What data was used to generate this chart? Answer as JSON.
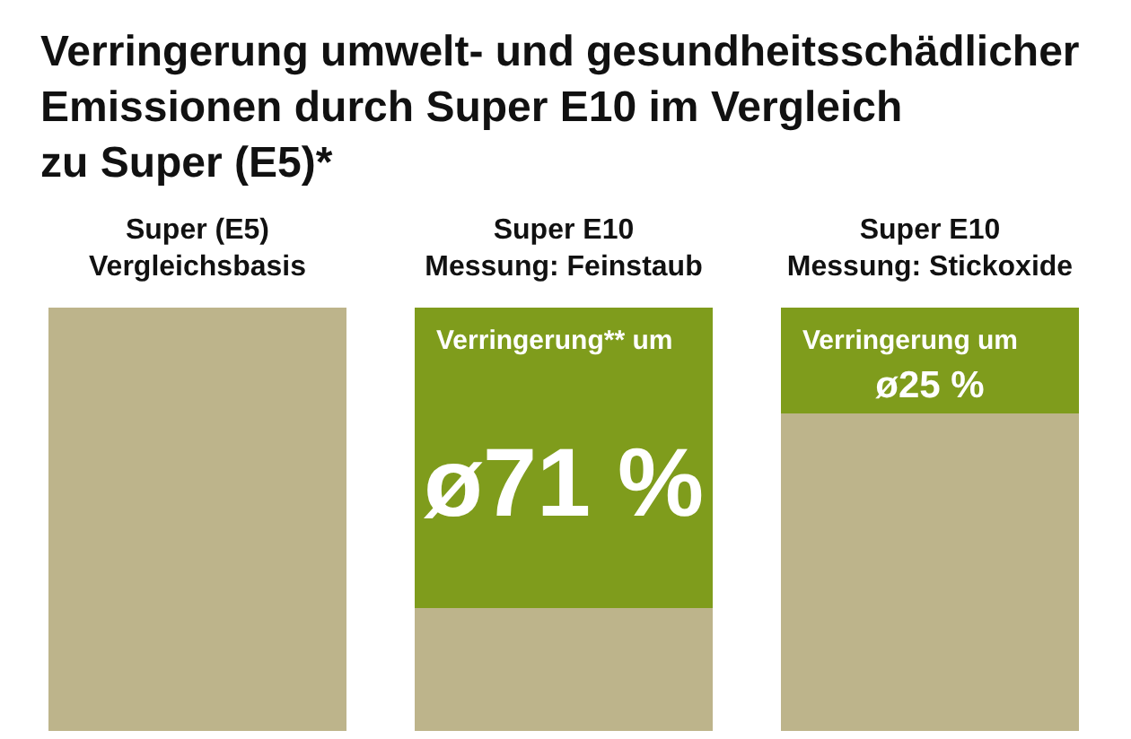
{
  "chart_data": {
    "type": "bar",
    "title": "Verringerung umwelt- und gesundheitsschädlicher\nEmissionen durch Super E10 im Vergleich\nzu Super (E5)*",
    "categories": [
      "Super (E5)\nVergleichsbasis",
      "Super E10\nMessung: Feinstaub",
      "Super E10\nMessung: Stickoxide"
    ],
    "stacked": true,
    "tick_labels": "x",
    "series": [
      {
        "color": "#bdb48b",
        "values": [
          100,
          29,
          75
        ]
      },
      {
        "color": "#7f9c1c",
        "values": [
          null,
          71,
          25
        ],
        "value_labels": [
          null,
          "ø71 %",
          "ø25 %"
        ]
      }
    ],
    "annotations": [
      {
        "text": "Verringerung** um",
        "x": "Super E10\nMessung: Feinstaub",
        "y": 100
      },
      {
        "text": "Verringerung um",
        "x": "Super E10\nMessung: Stickoxide",
        "y": 100
      }
    ]
  }
}
